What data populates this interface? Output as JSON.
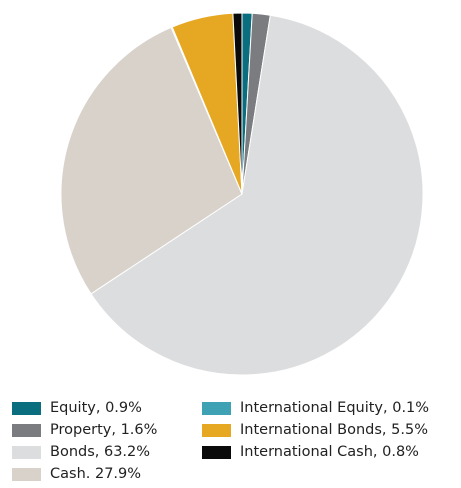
{
  "chart_data": {
    "type": "pie",
    "start_angle_deg": 0,
    "direction": "clockwise",
    "slices": [
      {
        "label": "Equity, 0.9%",
        "value": 0.9,
        "color": "#0b6e7f"
      },
      {
        "label": "Property, 1.6%",
        "value": 1.6,
        "color": "#7b7c80"
      },
      {
        "label": "Bonds, 63.2%",
        "value": 63.2,
        "color": "#dcdddf"
      },
      {
        "label": "Cash. 27.9%",
        "value": 27.9,
        "color": "#d8d2cb"
      },
      {
        "label": "International Equity, 0.1%",
        "value": 0.1,
        "color": "#3fa2b4"
      },
      {
        "label": "International Bonds, 5.5%",
        "value": 5.5,
        "color": "#e6a823"
      },
      {
        "label": "International Cash, 0.8%",
        "value": 0.8,
        "color": "#0a0a0a"
      }
    ],
    "legend_columns": [
      [
        0,
        1,
        2,
        3
      ],
      [
        4,
        5,
        6
      ]
    ]
  }
}
